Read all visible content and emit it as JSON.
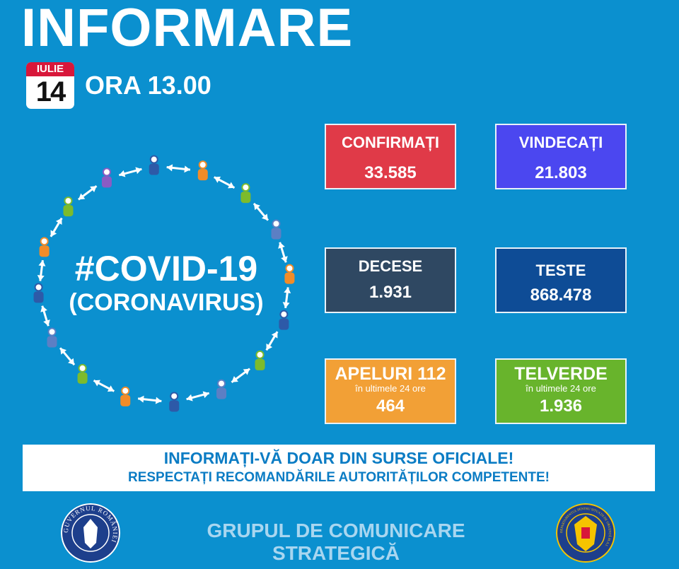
{
  "header": {
    "title": "INFORMARE",
    "date_month": "IULIE",
    "date_day": "14",
    "time": "ORA 13.00"
  },
  "center": {
    "hashtag": "#COVID-19",
    "subtitle": "(CORONAVIRUS)",
    "figure_colors": [
      "#2d5aa8",
      "#f28c28",
      "#7dbb2c",
      "#5c7fc4",
      "#f28c28",
      "#2d5aa8",
      "#7dbb2c",
      "#5c7fc4",
      "#2d5aa8",
      "#f28c28",
      "#7dbb2c",
      "#5c7fc4",
      "#2d5aa8",
      "#f28c28",
      "#7dbb2c",
      "#8a5cc4"
    ]
  },
  "stats": {
    "confirmati": {
      "label": "CONFIRMAȚI",
      "value": "33.585",
      "color": "#e03a48"
    },
    "vindecati": {
      "label": "VINDECAȚI",
      "value": "21.803",
      "color": "#4b47f0"
    },
    "decese": {
      "label": "DECESE",
      "value": "1.931",
      "color": "#2f4862"
    },
    "teste": {
      "label": "TESTE",
      "value": "868.478",
      "color": "#0e4c96"
    },
    "apeluri": {
      "label": "APELURI 112",
      "sub": "în ultimele 24 ore",
      "value": "464",
      "color": "#f2a036"
    },
    "telverde": {
      "label": "TELVERDE",
      "sub": "în ultimele 24 ore",
      "value": "1.936",
      "color": "#68b42c"
    }
  },
  "banner": {
    "line1": "INFORMAȚI-VĂ DOAR DIN SURSE OFICIALE!",
    "line2": "RESPECTAȚI RECOMANDĂRILE AUTORITĂȚILOR COMPETENTE!"
  },
  "footer": {
    "text": "GRUPUL DE COMUNICARE STRATEGICĂ",
    "left_logo_text": "GUVERNUL ROMÂNIEI",
    "right_logo_text": "DEPARTAMENTUL PENTRU SITUAȚII DE URGENȚĂ M.A.I."
  }
}
